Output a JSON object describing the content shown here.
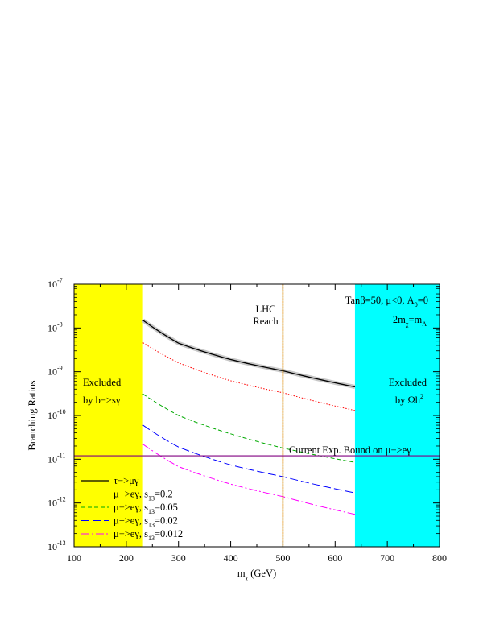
{
  "chart_data": {
    "type": "line",
    "xlabel": "m",
    "xlabel_sub": "χ",
    "xlabel_unit": " (GeV)",
    "ylabel": "Branching Ratios",
    "xlim": [
      100,
      800
    ],
    "ylim_log10": [
      -13,
      -7
    ],
    "yscale": "log",
    "x_ticks": [
      "100",
      "200",
      "300",
      "400",
      "500",
      "600",
      "700",
      "800"
    ],
    "y_ticks": [
      {
        "base": "10",
        "exp": "-13"
      },
      {
        "base": "10",
        "exp": "-12"
      },
      {
        "base": "10",
        "exp": "-11"
      },
      {
        "base": "10",
        "exp": "-10"
      },
      {
        "base": "10",
        "exp": "-9"
      },
      {
        "base": "10",
        "exp": "-8"
      },
      {
        "base": "10",
        "exp": "-7"
      }
    ],
    "regions": [
      {
        "x": [
          100,
          232
        ],
        "color": "#ffff00",
        "label1": "Excluded",
        "label2": "by b−>sγ"
      },
      {
        "x": [
          638,
          800
        ],
        "color": "#00ffff",
        "label1": "Excluded",
        "label2_main": "by Ωh",
        "label2_sup": "2"
      }
    ],
    "lhc_line": {
      "x": 500,
      "color": "#ff8c00",
      "label1": "LHC",
      "label2": "Reach"
    },
    "bound_line": {
      "y": 1.2e-11,
      "color": "#800080",
      "label": "Current Exp. Bound on μ−>eγ"
    },
    "params": {
      "line1": "Tanβ=50, μ<0, A",
      "line1_sub": "0",
      "line1_tail": "=0",
      "line2": "2m",
      "line2_sub": "χ",
      "line2_mid": "=m",
      "line2_sub2": "A"
    },
    "x": [
      232,
      300,
      400,
      500,
      638
    ],
    "series": [
      {
        "name": "τ−>μγ",
        "color": "#000000",
        "dash": "",
        "values": [
          1.5e-08,
          4.5e-09,
          1.9e-09,
          1.05e-09,
          4.5e-10
        ]
      },
      {
        "name": "μ−>eγ, s",
        "name_sub": "13",
        "name_tail": "=0.2",
        "color": "#ff0000",
        "dash": "1.5,2",
        "values": [
          4.6e-09,
          1.6e-09,
          6.2e-10,
          3.3e-10,
          1.3e-10
        ]
      },
      {
        "name": "μ−>eγ, s",
        "name_sub": "13",
        "name_tail": "=0.05",
        "color": "#00aa00",
        "dash": "5,3",
        "values": [
          3.1e-10,
          1e-10,
          3.8e-11,
          1.8e-11,
          8.5e-12
        ]
      },
      {
        "name": "μ−>eγ, s",
        "name_sub": "13",
        "name_tail": "=0.02",
        "color": "#0000ff",
        "dash": "10,4",
        "values": [
          6e-11,
          1.9e-11,
          7.4e-12,
          4e-12,
          1.7e-12
        ]
      },
      {
        "name": "μ−>eγ, s",
        "name_sub": "13",
        "name_tail": "=0.012",
        "color": "#ff00ff",
        "dash": "10,3,2,3",
        "values": [
          2.2e-11,
          6.8e-12,
          2.7e-12,
          1.4e-12,
          5.5e-13
        ]
      }
    ],
    "legend_position": "bottom-left",
    "grid": false
  }
}
